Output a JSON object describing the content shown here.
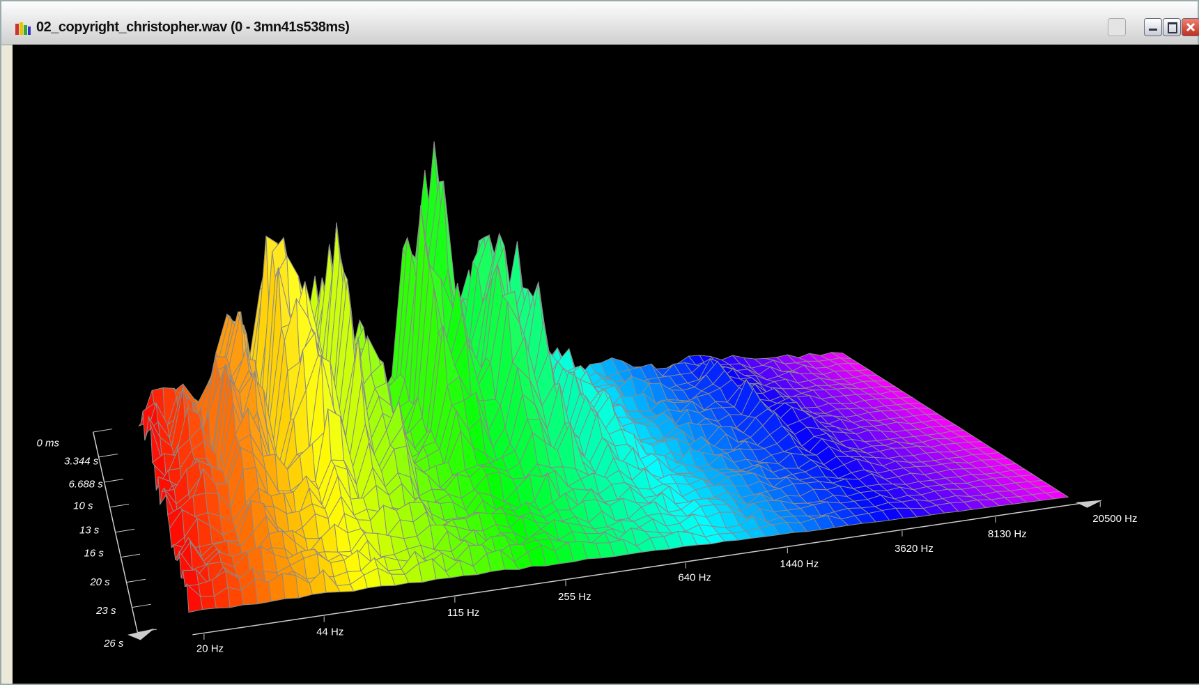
{
  "window": {
    "title": "02_copyright_christopher.wav (0 - 3mn41s538ms)"
  },
  "frequency_axis": {
    "labels": [
      "20 Hz",
      "44 Hz",
      "115 Hz",
      "255 Hz",
      "640 Hz",
      "1440 Hz",
      "3620 Hz",
      "8130 Hz",
      "20500 Hz"
    ]
  },
  "time_axis": {
    "labels": [
      "0 ms",
      "3.344 s",
      "6.688 s",
      "10 s",
      "13 s",
      "16 s",
      "20 s",
      "23 s",
      "26 s"
    ]
  }
}
